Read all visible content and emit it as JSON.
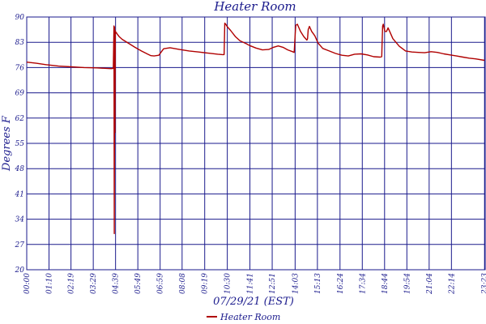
{
  "chart_data": {
    "type": "line",
    "title": "Heater Room",
    "xlabel": "07/29/21 (EST)",
    "ylabel": "Degrees F",
    "xlim": [
      0,
      1440
    ],
    "ylim": [
      20,
      90
    ],
    "grid": true,
    "legend_position": "bottom-center",
    "x_unit": "minutes",
    "y_ticks": [
      20,
      27,
      34,
      41,
      48,
      55,
      62,
      69,
      76,
      83,
      90
    ],
    "x_ticks": [
      {
        "t": 0,
        "label": "00:00"
      },
      {
        "t": 70,
        "label": "01:10"
      },
      {
        "t": 139,
        "label": "02:19"
      },
      {
        "t": 209,
        "label": "03:29"
      },
      {
        "t": 279,
        "label": "04:39"
      },
      {
        "t": 349,
        "label": "05:49"
      },
      {
        "t": 419,
        "label": "06:59"
      },
      {
        "t": 488,
        "label": "08:08"
      },
      {
        "t": 559,
        "label": "09:19"
      },
      {
        "t": 630,
        "label": "10:30"
      },
      {
        "t": 701,
        "label": "11:41"
      },
      {
        "t": 771,
        "label": "12:51"
      },
      {
        "t": 843,
        "label": "14:03"
      },
      {
        "t": 913,
        "label": "15:13"
      },
      {
        "t": 984,
        "label": "16:24"
      },
      {
        "t": 1054,
        "label": "17:34"
      },
      {
        "t": 1124,
        "label": "18:44"
      },
      {
        "t": 1194,
        "label": "19:54"
      },
      {
        "t": 1264,
        "label": "21:04"
      },
      {
        "t": 1334,
        "label": "22:14"
      },
      {
        "t": 1438,
        "label": "23:23"
      }
    ],
    "series": [
      {
        "name": "Heater Room",
        "color": "#b00000",
        "x": [
          0,
          30,
          60,
          100,
          140,
          180,
          220,
          262,
          268,
          272,
          274,
          275,
          276,
          277,
          278,
          279,
          280,
          282,
          285,
          290,
          300,
          320,
          340,
          360,
          380,
          390,
          400,
          415,
          430,
          450,
          480,
          510,
          540,
          570,
          600,
          615,
          620,
          622,
          625,
          630,
          640,
          655,
          670,
          690,
          700,
          720,
          740,
          760,
          775,
          790,
          805,
          820,
          835,
          840,
          842,
          845,
          850,
          860,
          870,
          880,
          882,
          884,
          888,
          895,
          905,
          915,
          930,
          950,
          970,
          990,
          1010,
          1030,
          1050,
          1070,
          1090,
          1110,
          1115,
          1116,
          1118,
          1120,
          1125,
          1130,
          1135,
          1140,
          1150,
          1170,
          1190,
          1210,
          1230,
          1250,
          1270,
          1290,
          1310,
          1330,
          1350,
          1370,
          1390,
          1410,
          1438
        ],
        "y": [
          77.5,
          77.2,
          76.8,
          76.4,
          76.2,
          76.0,
          75.9,
          75.7,
          75.7,
          75.8,
          87.5,
          30,
          87.2,
          58,
          86.2,
          85.5,
          85.8,
          85.6,
          85.2,
          84.6,
          83.8,
          82.7,
          81.6,
          80.6,
          79.7,
          79.3,
          79.2,
          79.4,
          81.2,
          81.5,
          81.0,
          80.6,
          80.3,
          80.0,
          79.7,
          79.6,
          79.6,
          88.3,
          88.0,
          87.3,
          86.3,
          84.6,
          83.4,
          82.6,
          82.1,
          81.4,
          80.9,
          81.0,
          81.6,
          82.0,
          81.6,
          80.9,
          80.4,
          80.2,
          83.5,
          87.7,
          88.0,
          86.0,
          84.6,
          83.6,
          84.0,
          86.5,
          87.4,
          86.0,
          84.8,
          82.8,
          81.3,
          80.6,
          79.9,
          79.4,
          79.2,
          79.7,
          79.8,
          79.5,
          79.0,
          78.9,
          79.0,
          82.6,
          87.5,
          88.0,
          86.0,
          86.0,
          87.0,
          86.0,
          84.0,
          81.9,
          80.6,
          80.3,
          80.2,
          80.1,
          80.4,
          80.2,
          79.8,
          79.5,
          79.2,
          78.9,
          78.6,
          78.4,
          78.0
        ]
      }
    ]
  },
  "colors": {
    "text": "#1a1a8c",
    "grid": "#1a1a8c",
    "series": "#b00000",
    "background": "#ffffff"
  }
}
